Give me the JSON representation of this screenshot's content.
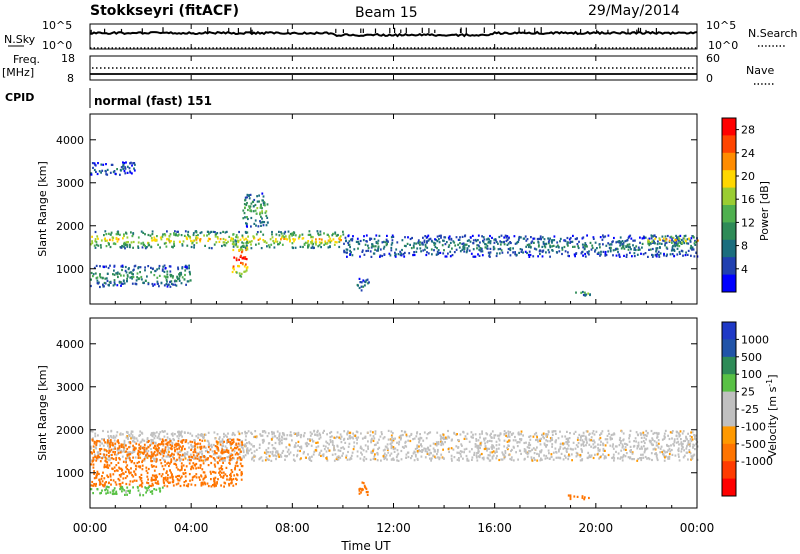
{
  "header": {
    "station": "Stokkseyri (fitACF)",
    "beam": "Beam 15",
    "date": "29/May/2014"
  },
  "nsky_panel": {
    "label": "N.Sky",
    "right_label": "N.Search",
    "left_ticks": [
      "10^5",
      "10^0"
    ],
    "right_ticks": [
      "10^5",
      "10^0"
    ]
  },
  "freq_panel": {
    "label_line1": "Freq.",
    "label_line2": "[MHz]",
    "right_label": "Nave",
    "left_ticks": [
      "18",
      "8"
    ],
    "right_ticks": [
      "60",
      "0"
    ]
  },
  "cpid_panel": {
    "label": "CPID",
    "mode_text": "normal (fast) 151"
  },
  "colors": {
    "power_scale": [
      "#0000ff",
      "#2040b0",
      "#1b6e7e",
      "#2e8b57",
      "#4fb04f",
      "#9acd32",
      "#ffd700",
      "#ff8c00",
      "#ff4500",
      "#ff0000"
    ],
    "velocity_scale": [
      "#1f39c6",
      "#2154a8",
      "#2e8b57",
      "#59c145",
      "#c0c0c0",
      "#c0c0c0",
      "#ff9900",
      "#ff7400",
      "#ff3b00",
      "#ff0000"
    ]
  },
  "chart_data": [
    {
      "type": "heatmap",
      "name": "power",
      "ylabel": "Slant Range [km]",
      "ylim": [
        180,
        4600
      ],
      "yticks": [
        1000,
        2000,
        3000,
        4000
      ],
      "colorbar_label": "Power [dB]",
      "colorbar_ticks": [
        "4",
        "8",
        "12",
        "16",
        "20",
        "24",
        "28"
      ],
      "colorbar_range": [
        0,
        30
      ],
      "echo_bands_utc_hours": [
        {
          "t": [
            0.0,
            10.0
          ],
          "range_km": [
            1500,
            1900
          ],
          "power_db": 18
        },
        {
          "t": [
            10.0,
            24.0
          ],
          "range_km": [
            1300,
            1800
          ],
          "power_db": 8
        },
        {
          "t": [
            22.0,
            24.0
          ],
          "range_km": [
            1600,
            1800
          ],
          "power_db": 20
        },
        {
          "t": [
            0.0,
            4.0
          ],
          "range_km": [
            600,
            1100
          ],
          "power_db": 10
        },
        {
          "t": [
            5.6,
            6.2
          ],
          "range_km": [
            800,
            1700
          ],
          "power_db": 26
        },
        {
          "t": [
            0.0,
            1.8
          ],
          "range_km": [
            3200,
            3500
          ],
          "power_db": 6
        },
        {
          "t": [
            6.0,
            7.0
          ],
          "range_km": [
            2000,
            2800
          ],
          "power_db": 12
        },
        {
          "t": [
            10.5,
            11.0
          ],
          "range_km": [
            500,
            800
          ],
          "power_db": 8
        },
        {
          "t": [
            18.8,
            19.8
          ],
          "range_km": [
            400,
            500
          ],
          "power_db": 14
        }
      ]
    },
    {
      "type": "heatmap",
      "name": "velocity",
      "ylabel": "Slant Range [km]",
      "ylim": [
        180,
        4600
      ],
      "yticks": [
        1000,
        2000,
        3000,
        4000
      ],
      "colorbar_label": "Velocity [m s^-1]",
      "colorbar_ticks": [
        "1000",
        "500",
        "100",
        "25",
        "-25",
        "-100",
        "-500",
        "-1000"
      ],
      "echo_bands_utc_hours": [
        {
          "t": [
            0.0,
            24.0
          ],
          "range_km": [
            1300,
            2000
          ],
          "velocity_ms": 0
        },
        {
          "t": [
            0.0,
            6.0
          ],
          "range_km": [
            700,
            1800
          ],
          "velocity_ms": -300
        },
        {
          "t": [
            0.0,
            3.0
          ],
          "range_km": [
            500,
            700
          ],
          "velocity_ms": 200
        },
        {
          "t": [
            10.5,
            11.0
          ],
          "range_km": [
            500,
            800
          ],
          "velocity_ms": -300
        },
        {
          "t": [
            18.8,
            19.8
          ],
          "range_km": [
            400,
            500
          ],
          "velocity_ms": -300
        }
      ],
      "xlabel": "Time UT",
      "xticks": [
        "00:00",
        "04:00",
        "08:00",
        "12:00",
        "16:00",
        "20:00",
        "00:00"
      ],
      "xlim_hours": [
        0,
        24
      ]
    }
  ]
}
